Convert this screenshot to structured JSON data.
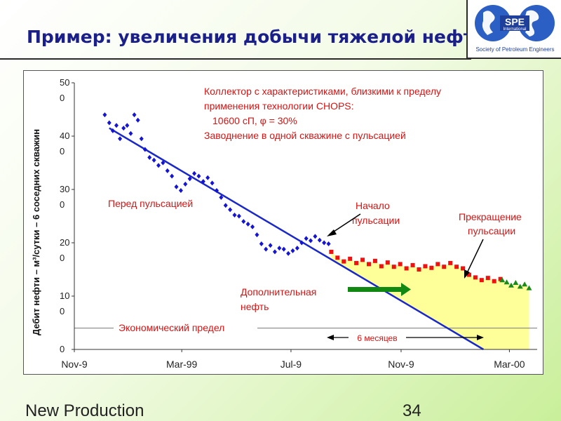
{
  "slide": {
    "title": "Пример: увеличения добычи тяжелой нефти",
    "logo_text": "SPE",
    "logo_subtext": "International",
    "logo_caption": "Society of Petroleum Engineers",
    "footer_left": "New Production",
    "page_number": "34"
  },
  "chart_data": {
    "type": "scatter",
    "ylabel": "Дебит нефти – м³/сутки – 6 соседних скважин",
    "ylim": [
      0,
      500
    ],
    "yticks": [
      {
        "value": 0,
        "label": "0"
      },
      {
        "value": 100,
        "label": "10\n0"
      },
      {
        "value": 200,
        "label": "20\n0"
      },
      {
        "value": 300,
        "label": "30\n0"
      },
      {
        "value": 400,
        "label": "40\n0"
      },
      {
        "value": 500,
        "label": "50\n0"
      }
    ],
    "xlim": [
      "1998-11-01",
      "2000-04-01"
    ],
    "xticks": [
      {
        "value": "1998-11-01",
        "label": "Nov-9\n8"
      },
      {
        "value": "1999-03-01",
        "label": "Mar-99"
      },
      {
        "value": "1999-07-01",
        "label": "Jul-9\n9"
      },
      {
        "value": "1999-11-01",
        "label": "Nov-9\n9"
      },
      {
        "value": "2000-03-01",
        "label": "Mar-00"
      }
    ],
    "grid": false,
    "series": [
      {
        "color": "#1414d2",
        "marker": "diamond",
        "points": [
          [
            "1998-12-05",
            440
          ],
          [
            "1998-12-10",
            425
          ],
          [
            "1998-12-14",
            410
          ],
          [
            "1998-12-18",
            420
          ],
          [
            "1998-12-22",
            395
          ],
          [
            "1998-12-26",
            415
          ],
          [
            "1998-12-30",
            420
          ],
          [
            "1999-01-03",
            405
          ],
          [
            "1999-01-07",
            440
          ],
          [
            "1999-01-11",
            430
          ],
          [
            "1999-01-15",
            395
          ],
          [
            "1999-01-19",
            375
          ],
          [
            "1999-01-24",
            360
          ],
          [
            "1999-01-29",
            355
          ],
          [
            "1999-02-03",
            345
          ],
          [
            "1999-02-08",
            350
          ],
          [
            "1999-02-13",
            335
          ],
          [
            "1999-02-18",
            325
          ],
          [
            "1999-02-23",
            305
          ],
          [
            "1999-02-28",
            298
          ],
          [
            "1999-03-05",
            310
          ],
          [
            "1999-03-10",
            320
          ],
          [
            "1999-03-15",
            330
          ],
          [
            "1999-03-20",
            325
          ],
          [
            "1999-03-25",
            315
          ],
          [
            "1999-03-30",
            322
          ],
          [
            "1999-04-04",
            312
          ],
          [
            "1999-04-09",
            298
          ],
          [
            "1999-04-14",
            285
          ],
          [
            "1999-04-19",
            270
          ],
          [
            "1999-04-24",
            262
          ],
          [
            "1999-04-29",
            252
          ],
          [
            "1999-05-04",
            250
          ],
          [
            "1999-05-09",
            240
          ],
          [
            "1999-05-14",
            235
          ],
          [
            "1999-05-19",
            230
          ],
          [
            "1999-05-24",
            215
          ],
          [
            "1999-05-29",
            198
          ],
          [
            "1999-06-03",
            188
          ],
          [
            "1999-06-08",
            195
          ],
          [
            "1999-06-13",
            183
          ],
          [
            "1999-06-18",
            190
          ],
          [
            "1999-06-23",
            188
          ],
          [
            "1999-06-28",
            180
          ],
          [
            "1999-07-03",
            185
          ],
          [
            "1999-07-08",
            190
          ],
          [
            "1999-07-13",
            200
          ],
          [
            "1999-07-18",
            208
          ],
          [
            "1999-07-23",
            204
          ],
          [
            "1999-07-28",
            212
          ],
          [
            "1999-08-02",
            205
          ],
          [
            "1999-08-07",
            200
          ],
          [
            "1999-08-12",
            198
          ]
        ]
      },
      {
        "color": "#ee1111",
        "marker": "square",
        "points": [
          [
            "1999-08-15",
            183
          ],
          [
            "1999-08-22",
            172
          ],
          [
            "1999-08-29",
            165
          ],
          [
            "1999-09-05",
            170
          ],
          [
            "1999-09-12",
            162
          ],
          [
            "1999-09-19",
            168
          ],
          [
            "1999-09-26",
            160
          ],
          [
            "1999-10-03",
            166
          ],
          [
            "1999-10-10",
            156
          ],
          [
            "1999-10-17",
            163
          ],
          [
            "1999-10-24",
            155
          ],
          [
            "1999-10-31",
            160
          ],
          [
            "1999-11-07",
            152
          ],
          [
            "1999-11-14",
            158
          ],
          [
            "1999-11-21",
            150
          ],
          [
            "1999-11-28",
            156
          ],
          [
            "1999-12-05",
            153
          ],
          [
            "1999-12-12",
            160
          ],
          [
            "1999-12-19",
            155
          ],
          [
            "1999-12-26",
            162
          ],
          [
            "2000-01-02",
            155
          ],
          [
            "2000-01-09",
            152
          ],
          [
            "2000-01-16",
            140
          ],
          [
            "2000-01-23",
            135
          ],
          [
            "2000-01-30",
            130
          ],
          [
            "2000-02-06",
            134
          ],
          [
            "2000-02-13",
            128
          ],
          [
            "2000-02-20",
            132
          ]
        ]
      },
      {
        "color": "#1a8a1a",
        "marker": "triangle",
        "points": [
          [
            "2000-02-22",
            130
          ],
          [
            "2000-02-27",
            126
          ],
          [
            "2000-03-03",
            120
          ],
          [
            "2000-03-08",
            125
          ],
          [
            "2000-03-13",
            118
          ],
          [
            "2000-03-18",
            122
          ],
          [
            "2000-03-23",
            115
          ]
        ]
      }
    ],
    "trend_line": {
      "color": "#1a28c8",
      "from": [
        "1998-12-10",
        415
      ],
      "to": [
        "2000-02-01",
        0
      ]
    },
    "economic_limit": {
      "value": 40,
      "label": "Экономический предел"
    },
    "additional_oil_area": {
      "color": "#ffff99",
      "from": "1999-08-15",
      "to": "2000-03-23"
    },
    "annotations": {
      "reservoir_title": "Коллектор с характеристиками, близкими к пределу",
      "reservoir_title_2": "применения технологии CHOPS:",
      "reservoir_props": "10600 сП, φ = 30%",
      "reservoir_flood": "Заводнение в одной скважине с пульсацией",
      "before_pulse": "Перед пульсацией",
      "pulse_start_1": "Начало",
      "pulse_start_2": "пульсации",
      "pulse_stop_1": "Прекращение",
      "pulse_stop_2": "пульсации",
      "extra_oil_1": "Дополнительная",
      "extra_oil_2": "нефть",
      "six_months": "6 месяцев"
    }
  }
}
